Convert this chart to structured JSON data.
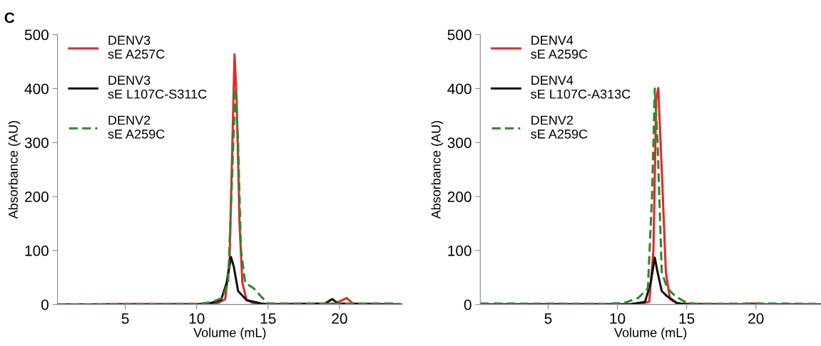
{
  "chart_data": [
    {
      "type": "line",
      "xlabel": "Volume (mL)",
      "ylabel": "Absorbance (AU)",
      "annotations": [
        "C"
      ],
      "xlim": [
        0.25,
        24.4
      ],
      "ylim": [
        0,
        500
      ],
      "xticks": [
        5,
        10,
        15,
        20
      ],
      "yticks": [
        0,
        100,
        200,
        300,
        400,
        500
      ],
      "grid": false,
      "legend": "top left",
      "marker": "none",
      "series": [
        {
          "name": "DENV3\nsE A257C",
          "color": "#e8262a",
          "line_style": "solid",
          "x": [
            0.25,
            4.7,
            11,
            11.5,
            12,
            12.3,
            12.5,
            12.65,
            12.8,
            13.0,
            13.2,
            13.5,
            14,
            15,
            19,
            19.7,
            20.2,
            20.5,
            20.8,
            21,
            24.4
          ],
          "values": [
            0,
            1,
            1,
            3,
            10,
            80,
            300,
            463,
            380,
            150,
            40,
            8,
            2,
            1,
            1,
            2,
            8,
            12,
            5,
            1,
            0
          ]
        },
        {
          "name": "DENV3\nsE L107C-S311C",
          "color": "#111111",
          "line_style": "solid",
          "x": [
            0.25,
            10,
            11,
            11.7,
            12.1,
            12.4,
            12.6,
            12.9,
            13.5,
            14.5,
            15,
            19,
            19.5,
            19.9,
            24.4
          ],
          "values": [
            0,
            0,
            3,
            8,
            40,
            88,
            70,
            25,
            8,
            2,
            0,
            2,
            10,
            2,
            0
          ]
        },
        {
          "name": "DENV2\nsE A259C",
          "color": "#2a8a2a",
          "line_style": "dashed",
          "x": [
            0.25,
            10,
            11,
            11.8,
            12.2,
            12.5,
            12.7,
            12.9,
            13.1,
            13.4,
            14,
            14.5,
            15,
            19.5,
            24,
            24.4
          ],
          "values": [
            0,
            1,
            4,
            12,
            40,
            250,
            400,
            300,
            100,
            40,
            30,
            15,
            2,
            2,
            2,
            0
          ]
        }
      ]
    },
    {
      "type": "line",
      "xlabel": "Volume (mL)",
      "ylabel": "Absorbance (AU)",
      "xlim": [
        0.1,
        24.7
      ],
      "ylim": [
        0,
        500
      ],
      "xticks": [
        5,
        10,
        15,
        20
      ],
      "yticks": [
        0,
        100,
        200,
        300,
        400,
        500
      ],
      "grid": false,
      "legend": "top left",
      "marker": "none",
      "series": [
        {
          "name": "DENV4\nsE A259C",
          "color": "#e8262a",
          "line_style": "solid",
          "x": [
            0.1,
            11.5,
            12.3,
            12.6,
            12.8,
            12.95,
            13.2,
            13.5,
            13.8,
            14.3,
            19,
            19.3,
            20.3,
            20.5,
            24.7
          ],
          "values": [
            0,
            0,
            5,
            100,
            380,
            401,
            250,
            60,
            10,
            2,
            0,
            2,
            2,
            0,
            0
          ]
        },
        {
          "name": "DENV4\nsE L107C-A313C",
          "color": "#111111",
          "line_style": "solid",
          "x": [
            0.1,
            11,
            12,
            12.4,
            12.7,
            12.9,
            13.2,
            13.6,
            14.3,
            15,
            24.7
          ],
          "values": [
            0,
            1,
            5,
            40,
            87,
            60,
            25,
            15,
            3,
            0,
            0
          ]
        },
        {
          "name": "DENV2\nsE A259C",
          "color": "#2a8a2a",
          "line_style": "dashed",
          "x": [
            0.1,
            9,
            10.5,
            11.5,
            12.2,
            12.5,
            12.7,
            12.9,
            13.2,
            13.6,
            14.2,
            15,
            16,
            21,
            24.7
          ],
          "values": [
            2,
            1,
            3,
            12,
            30,
            200,
            400,
            300,
            60,
            30,
            15,
            3,
            1,
            2,
            1
          ]
        }
      ]
    }
  ]
}
